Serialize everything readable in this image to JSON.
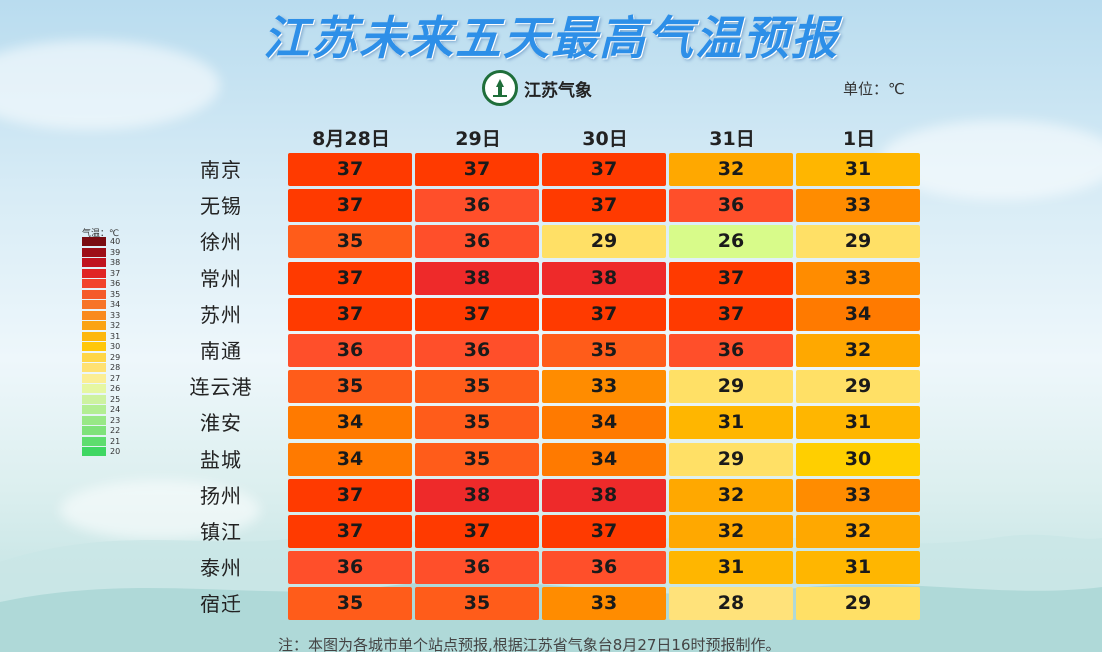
{
  "title": "江苏未来五天最高气温预报",
  "logo_text": "江苏气象",
  "unit_label": "单位：℃",
  "legend_title": "气温：℃",
  "note": "注：本图为各城市单个站点预报,根据江苏省气象台8月27日16时预报制作。",
  "dates": [
    "8月28日",
    "29日",
    "30日",
    "31日",
    "1日"
  ],
  "cities": [
    "南京",
    "无锡",
    "徐州",
    "常州",
    "苏州",
    "南通",
    "连云港",
    "淮安",
    "盐城",
    "扬州",
    "镇江",
    "泰州",
    "宿迁"
  ],
  "legend": [
    {
      "label": "40",
      "color": "#7a0c12"
    },
    {
      "label": "39",
      "color": "#9d0e18"
    },
    {
      "label": "38",
      "color": "#c0131f"
    },
    {
      "label": "37",
      "color": "#e02424"
    },
    {
      "label": "36",
      "color": "#f2432c"
    },
    {
      "label": "35",
      "color": "#f55a2a"
    },
    {
      "label": "34",
      "color": "#f77428"
    },
    {
      "label": "33",
      "color": "#f98a1e"
    },
    {
      "label": "32",
      "color": "#fba313"
    },
    {
      "label": "31",
      "color": "#fdb70d"
    },
    {
      "label": "30",
      "color": "#ffc70a"
    },
    {
      "label": "29",
      "color": "#ffd648"
    },
    {
      "label": "28",
      "color": "#ffe172"
    },
    {
      "label": "27",
      "color": "#fbee95"
    },
    {
      "label": "26",
      "color": "#e6f7a2"
    },
    {
      "label": "25",
      "color": "#cdf2a0"
    },
    {
      "label": "24",
      "color": "#b3ee93"
    },
    {
      "label": "23",
      "color": "#98e886"
    },
    {
      "label": "22",
      "color": "#7fe27a"
    },
    {
      "label": "21",
      "color": "#5edd6e"
    },
    {
      "label": "20",
      "color": "#3fd762"
    }
  ],
  "table": {
    "南京": [
      "37",
      "37",
      "37",
      "32",
      "31"
    ],
    "无锡": [
      "37",
      "36",
      "37",
      "36",
      "33"
    ],
    "徐州": [
      "35",
      "36",
      "29",
      "26",
      "29"
    ],
    "常州": [
      "37",
      "38",
      "38",
      "37",
      "33"
    ],
    "苏州": [
      "37",
      "37",
      "37",
      "37",
      "34"
    ],
    "南通": [
      "36",
      "36",
      "35",
      "36",
      "32"
    ],
    "连云港": [
      "35",
      "35",
      "33",
      "29",
      "29"
    ],
    "淮安": [
      "34",
      "35",
      "34",
      "31",
      "31"
    ],
    "盐城": [
      "34",
      "35",
      "34",
      "29",
      "30"
    ],
    "扬州": [
      "37",
      "38",
      "38",
      "32",
      "33"
    ],
    "镇江": [
      "37",
      "37",
      "37",
      "32",
      "32"
    ],
    "泰州": [
      "36",
      "36",
      "36",
      "31",
      "31"
    ],
    "宿迁": [
      "35",
      "35",
      "33",
      "28",
      "29"
    ]
  },
  "cell_colors": {
    "38": "#ee2a2a",
    "37": "#ff3a00",
    "36": "#ff4f2a",
    "35": "#ff5c1a",
    "34": "#ff7a00",
    "33": "#ff8c00",
    "32": "#ffa800",
    "31": "#ffb600",
    "30": "#ffcf00",
    "29": "#ffe066",
    "28": "#ffe27a",
    "26": "#d8fb8a"
  }
}
